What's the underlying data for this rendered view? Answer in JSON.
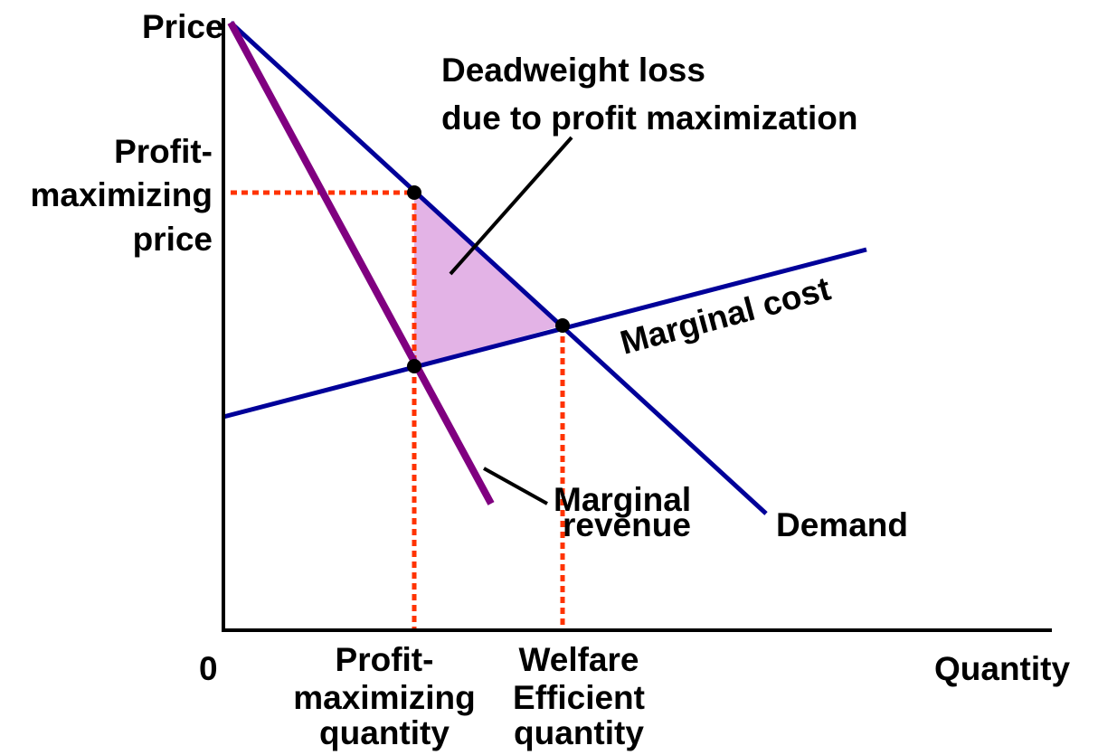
{
  "axes": {
    "y_label": "Price",
    "x_label": "Quantity",
    "origin": "0"
  },
  "deadweight_loss": [
    "Deadweight loss",
    "due to profit maximization"
  ],
  "curves": {
    "marginal_cost": "Marginal cost",
    "marginal_revenue": [
      "Marginal",
      "revenue"
    ],
    "demand": "Demand"
  },
  "profit_maximizing_price": [
    "Profit-",
    "maximizing",
    "price"
  ],
  "profit_maximizing_quantity": [
    "Profit-",
    "maximizing",
    "quantity"
  ],
  "welfare_efficient_quantity": [
    "Welfare",
    "Efficient",
    "quantity"
  ]
}
